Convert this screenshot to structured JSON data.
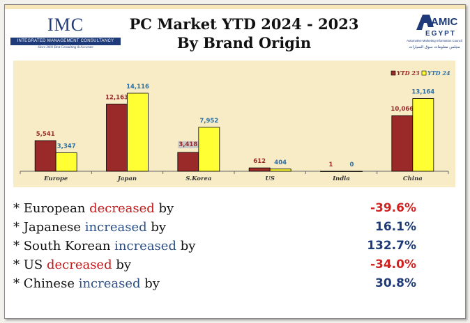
{
  "header": {
    "title_line1": "PC Market YTD 2024 - 2023",
    "title_line2": "By Brand Origin",
    "left_logo": {
      "name": "IMC",
      "subtitle": "INTEGRATED MANAGEMENT CONSULTANCY",
      "tagline": "Since 2001 Best Consulting & Accurate"
    },
    "right_logo": {
      "name": "AMIC",
      "subtitle": "EGYPT",
      "tagline": "Automotive Marketing Information Council",
      "arabic_text": "مجلس معلومات سوق السيارات"
    }
  },
  "colors": {
    "ytd23": "#9a2a2a",
    "ytd24": "#ffff33",
    "plot_bg": "#f7ecc6",
    "label_red": "#9a2a2a",
    "label_blue": "#2e6fa3",
    "decrease": "#d02020",
    "increase": "#1e3a78"
  },
  "chart_data": {
    "type": "bar",
    "categories": [
      "Europe",
      "Japan",
      "S.Korea",
      "US",
      "India",
      "China"
    ],
    "series": [
      {
        "name": "YTD 23",
        "values": [
          5541,
          12163,
          3418,
          612,
          1,
          10066
        ]
      },
      {
        "name": "YTD 24",
        "values": [
          3347,
          14116,
          7952,
          404,
          0,
          13164
        ]
      }
    ],
    "data_labels": {
      "YTD 23": [
        "5,541",
        "12,163",
        "3,418",
        "612",
        "1",
        "10,066"
      ],
      "YTD 24": [
        "3,347",
        "14,116",
        "7,952",
        "404",
        "0",
        "13,164"
      ]
    },
    "ylim": [
      0,
      16000
    ],
    "legend_position": "top-right",
    "grid": false
  },
  "stats": [
    {
      "prefix": "* European ",
      "verb": "decreased",
      "suffix": " by",
      "value": "-39.6%",
      "direction": "dec"
    },
    {
      "prefix": "* Japanese ",
      "verb": "increased",
      "suffix": " by",
      "value": "16.1%",
      "direction": "inc"
    },
    {
      "prefix": "* South Korean ",
      "verb": "increased",
      "suffix": " by",
      "value": "132.7%",
      "direction": "inc"
    },
    {
      "prefix": "* US ",
      "verb": "decreased",
      "suffix": " by",
      "value": "-34.0%",
      "direction": "dec"
    },
    {
      "prefix": "* Chinese ",
      "verb": "increased",
      "suffix": " by",
      "value": "30.8%",
      "direction": "inc"
    }
  ]
}
